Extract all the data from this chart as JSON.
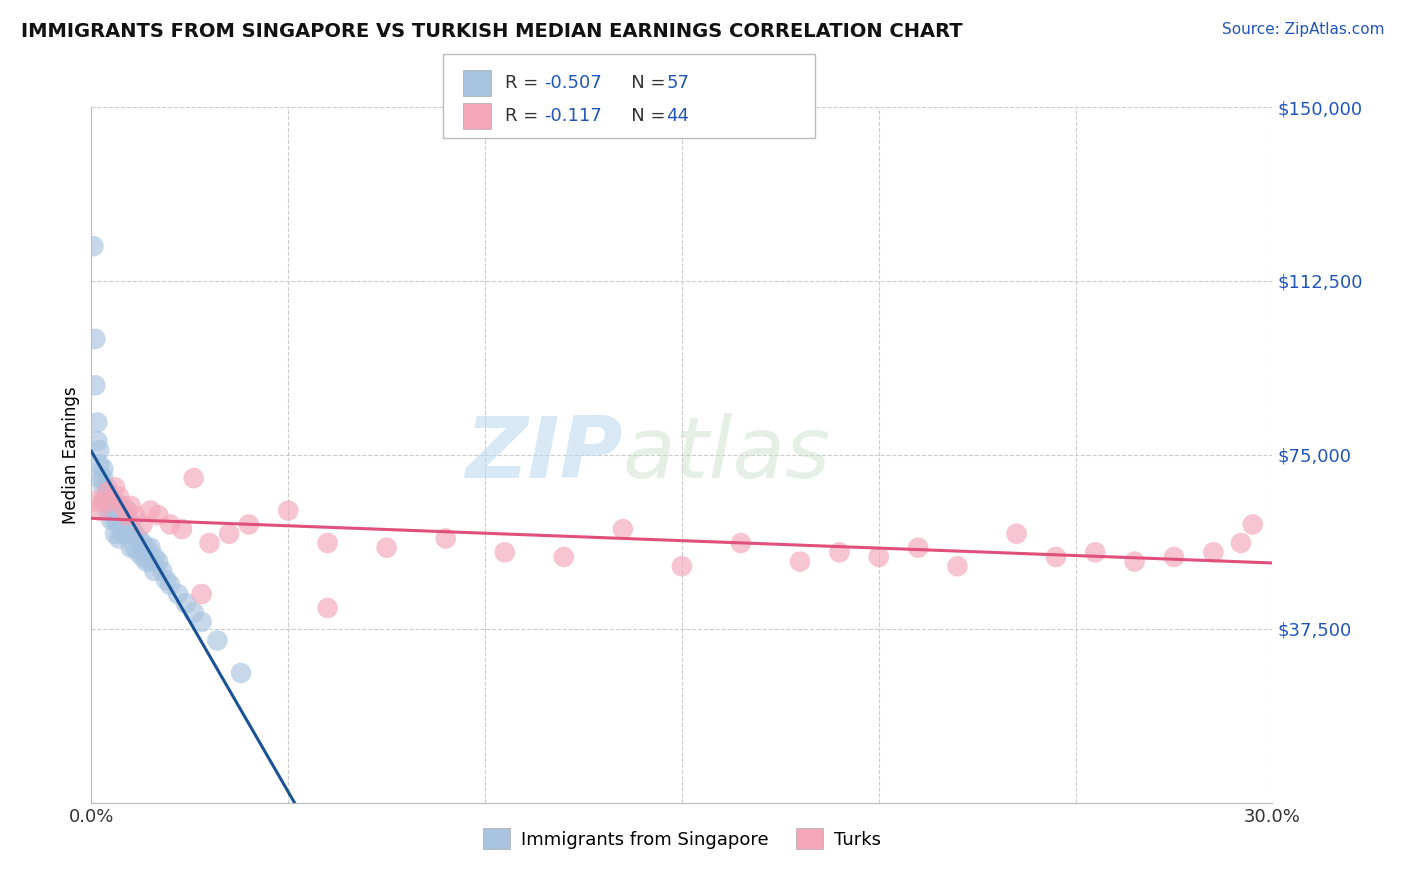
{
  "title": "IMMIGRANTS FROM SINGAPORE VS TURKISH MEDIAN EARNINGS CORRELATION CHART",
  "source": "Source: ZipAtlas.com",
  "ylabel": "Median Earnings",
  "xlim": [
    0.0,
    0.3
  ],
  "ylim": [
    0,
    150000
  ],
  "yticks": [
    0,
    37500,
    75000,
    112500,
    150000
  ],
  "ytick_labels": [
    "",
    "$37,500",
    "$75,000",
    "$112,500",
    "$150,000"
  ],
  "xticks": [
    0.0,
    0.05,
    0.1,
    0.15,
    0.2,
    0.25,
    0.3
  ],
  "xtick_labels": [
    "0.0%",
    "",
    "",
    "",
    "",
    "",
    "30.0%"
  ],
  "bg_color": "#ffffff",
  "grid_color": "#cccccc",
  "singapore_color": "#a8c4e0",
  "turk_color": "#f4a7b9",
  "singapore_line_color": "#1a5296",
  "turk_line_color": "#e0507a",
  "singapore_R": -0.507,
  "singapore_N": 57,
  "turk_R": -0.117,
  "turk_N": 44,
  "watermark_zip": "ZIP",
  "watermark_atlas": "atlas",
  "legend_label_1": "Immigrants from Singapore",
  "legend_label_2": "Turks",
  "singapore_x": [
    0.0005,
    0.001,
    0.001,
    0.0015,
    0.0015,
    0.002,
    0.002,
    0.002,
    0.003,
    0.003,
    0.003,
    0.003,
    0.004,
    0.004,
    0.004,
    0.005,
    0.005,
    0.005,
    0.006,
    0.006,
    0.006,
    0.006,
    0.007,
    0.007,
    0.007,
    0.007,
    0.008,
    0.008,
    0.008,
    0.009,
    0.009,
    0.009,
    0.01,
    0.01,
    0.01,
    0.011,
    0.011,
    0.012,
    0.012,
    0.013,
    0.013,
    0.014,
    0.014,
    0.015,
    0.015,
    0.016,
    0.016,
    0.017,
    0.018,
    0.019,
    0.02,
    0.022,
    0.024,
    0.026,
    0.028,
    0.032,
    0.038
  ],
  "singapore_y": [
    120000,
    100000,
    90000,
    82000,
    78000,
    76000,
    73000,
    70000,
    72000,
    70000,
    68000,
    65000,
    68000,
    66000,
    63000,
    65000,
    63000,
    61000,
    65000,
    63000,
    61000,
    58000,
    64000,
    62000,
    60000,
    57000,
    62000,
    60000,
    58000,
    63000,
    61000,
    58000,
    60000,
    58000,
    55000,
    58000,
    55000,
    57000,
    54000,
    56000,
    53000,
    55000,
    52000,
    55000,
    52000,
    53000,
    50000,
    52000,
    50000,
    48000,
    47000,
    45000,
    43000,
    41000,
    39000,
    35000,
    28000
  ],
  "turk_x": [
    0.001,
    0.002,
    0.003,
    0.004,
    0.005,
    0.006,
    0.007,
    0.008,
    0.009,
    0.01,
    0.011,
    0.013,
    0.015,
    0.017,
    0.02,
    0.023,
    0.026,
    0.03,
    0.035,
    0.04,
    0.05,
    0.06,
    0.075,
    0.09,
    0.105,
    0.12,
    0.135,
    0.15,
    0.165,
    0.18,
    0.19,
    0.2,
    0.21,
    0.22,
    0.235,
    0.245,
    0.255,
    0.265,
    0.275,
    0.285,
    0.292,
    0.295,
    0.028,
    0.06
  ],
  "turk_y": [
    65000,
    63000,
    65000,
    67000,
    65000,
    68000,
    66000,
    64000,
    62000,
    64000,
    62000,
    60000,
    63000,
    62000,
    60000,
    59000,
    70000,
    56000,
    58000,
    60000,
    63000,
    56000,
    55000,
    57000,
    54000,
    53000,
    59000,
    51000,
    56000,
    52000,
    54000,
    53000,
    55000,
    51000,
    58000,
    53000,
    54000,
    52000,
    53000,
    54000,
    56000,
    60000,
    45000,
    42000
  ]
}
